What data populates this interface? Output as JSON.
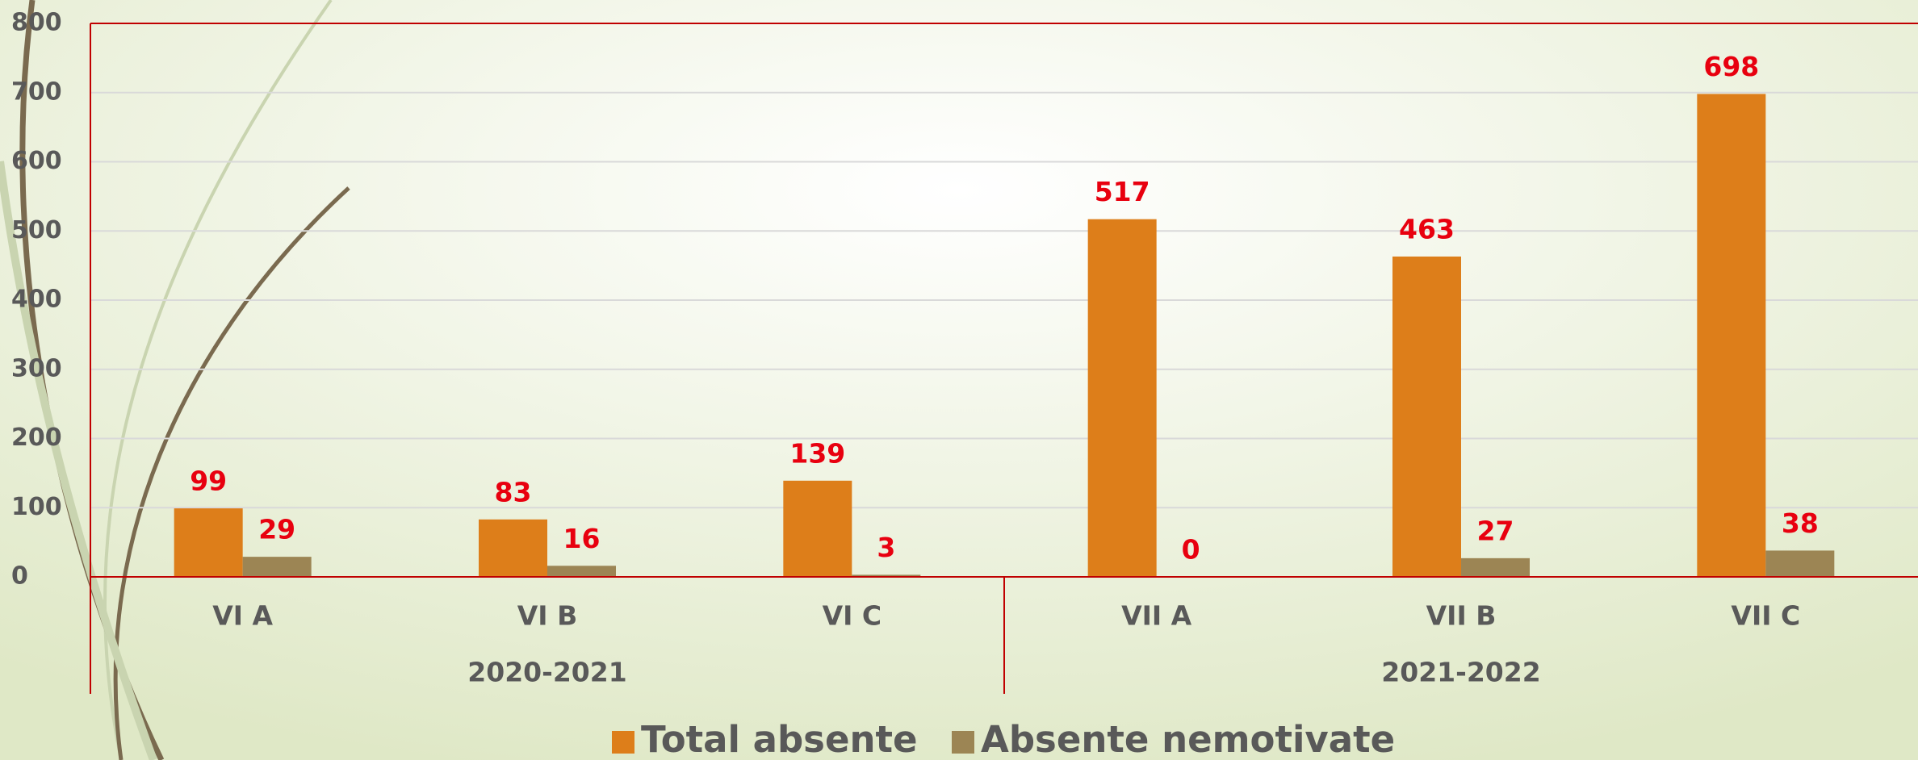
{
  "chart_data": {
    "type": "bar",
    "groups": [
      {
        "label": "2020-2021",
        "categories": [
          "VI A",
          "VI B",
          "VI C"
        ]
      },
      {
        "label": "2021-2022",
        "categories": [
          "VII A",
          "VII B",
          "VII C"
        ]
      }
    ],
    "series": [
      {
        "name": "Total absente",
        "color": "#dd7e1a",
        "values": [
          99,
          83,
          139,
          517,
          463,
          698
        ]
      },
      {
        "name": "Absente nemotivate",
        "color": "#9c8554",
        "values": [
          29,
          16,
          3,
          0,
          27,
          38
        ]
      }
    ],
    "ylim": [
      0,
      800
    ],
    "yticks": [
      0,
      100,
      200,
      300,
      400,
      500,
      600,
      700,
      800
    ],
    "grid": true,
    "legend": "bottom"
  }
}
